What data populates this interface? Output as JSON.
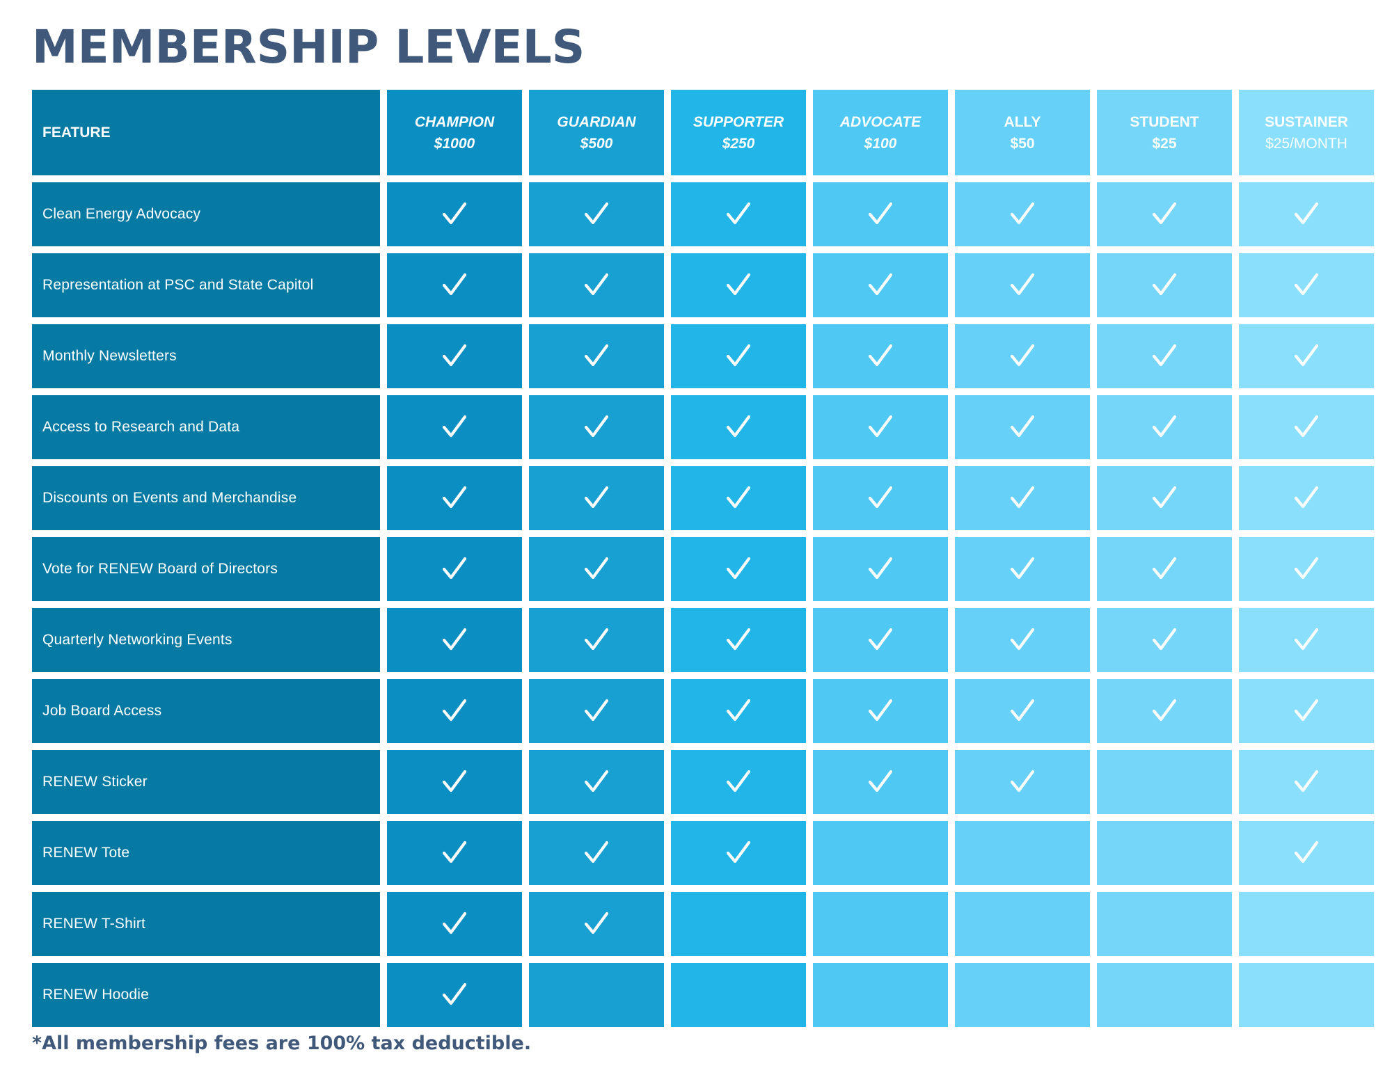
{
  "title": "MEMBERSHIP LEVELS",
  "header": {
    "feature_label": "FEATURE"
  },
  "levels": [
    {
      "name": "CHAMPION",
      "price": "$1000",
      "color": "#0b8fc2"
    },
    {
      "name": "GUARDIAN",
      "price": "$500",
      "color": "#17a0d1"
    },
    {
      "name": "SUPPORTER",
      "price": "$250",
      "color": "#22b6e8"
    },
    {
      "name": "ADVOCATE",
      "price": "$100",
      "color": "#4fc8f3"
    },
    {
      "name": "ALLY",
      "price": "$50",
      "color": "#66d0f8"
    },
    {
      "name": "STUDENT",
      "price": "$25",
      "color": "#76d6fa"
    },
    {
      "name": "SUSTAINER",
      "price": "$25/MONTH",
      "color": "#8adffc"
    }
  ],
  "feature_column_color": "#077aa3",
  "check_icon": "checkmark-icon",
  "features": [
    {
      "label": "Clean Energy Advocacy",
      "included": [
        true,
        true,
        true,
        true,
        true,
        true,
        true
      ]
    },
    {
      "label": "Representation at PSC and State Capitol",
      "included": [
        true,
        true,
        true,
        true,
        true,
        true,
        true
      ]
    },
    {
      "label": "Monthly Newsletters",
      "included": [
        true,
        true,
        true,
        true,
        true,
        true,
        true
      ]
    },
    {
      "label": "Access to Research and Data",
      "included": [
        true,
        true,
        true,
        true,
        true,
        true,
        true
      ]
    },
    {
      "label": "Discounts on Events and Merchandise",
      "included": [
        true,
        true,
        true,
        true,
        true,
        true,
        true
      ]
    },
    {
      "label": "Vote for RENEW Board of Directors",
      "included": [
        true,
        true,
        true,
        true,
        true,
        true,
        true
      ]
    },
    {
      "label": "Quarterly Networking Events",
      "included": [
        true,
        true,
        true,
        true,
        true,
        true,
        true
      ]
    },
    {
      "label": "Job Board Access",
      "included": [
        true,
        true,
        true,
        true,
        true,
        true,
        true
      ]
    },
    {
      "label": "RENEW Sticker",
      "included": [
        true,
        true,
        true,
        true,
        true,
        false,
        true
      ]
    },
    {
      "label": "RENEW Tote",
      "included": [
        true,
        true,
        true,
        false,
        false,
        false,
        true
      ]
    },
    {
      "label": "RENEW T-Shirt",
      "included": [
        true,
        true,
        false,
        false,
        false,
        false,
        false
      ]
    },
    {
      "label": "RENEW Hoodie",
      "included": [
        true,
        false,
        false,
        false,
        false,
        false,
        false
      ]
    }
  ],
  "footnote": "*All membership fees are 100% tax deductible."
}
